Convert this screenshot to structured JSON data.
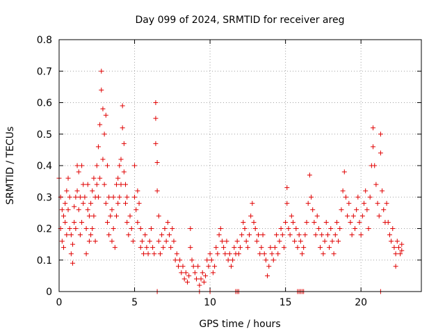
{
  "chart_data": {
    "type": "scatter",
    "title": "Day 099 of 2024, SRMTID for receiver areg",
    "xlabel": "GPS time / hours",
    "ylabel": "SRMTID / TECUs",
    "xlim": [
      0,
      24
    ],
    "ylim": [
      0,
      0.8
    ],
    "xticks": [
      0,
      5,
      10,
      15,
      20
    ],
    "xtick_labels": [
      "0",
      "5",
      "10",
      "15",
      "20"
    ],
    "yticks": [
      0,
      0.1,
      0.2,
      0.3,
      0.4,
      0.5,
      0.6,
      0.7,
      0.8
    ],
    "ytick_labels": [
      "0",
      "0.1",
      "0.2",
      "0.3",
      "0.4",
      "0.5",
      "0.6",
      "0.7",
      "0.8"
    ],
    "grid": true,
    "marker": "plus",
    "color": "#e00000",
    "series": [
      {
        "name": "SRMTID",
        "points": [
          [
            0.0,
            0.36
          ],
          [
            0.1,
            0.3
          ],
          [
            0.1,
            0.2
          ],
          [
            0.2,
            0.16
          ],
          [
            0.2,
            0.26
          ],
          [
            0.3,
            0.14
          ],
          [
            0.3,
            0.24
          ],
          [
            0.4,
            0.28
          ],
          [
            0.4,
            0.22
          ],
          [
            0.5,
            0.32
          ],
          [
            0.5,
            0.18
          ],
          [
            0.6,
            0.36
          ],
          [
            0.6,
            0.26
          ],
          [
            0.7,
            0.3
          ],
          [
            0.7,
            0.2
          ],
          [
            0.8,
            0.12
          ],
          [
            0.8,
            0.18
          ],
          [
            0.9,
            0.09
          ],
          [
            0.9,
            0.15
          ],
          [
            1.0,
            0.22
          ],
          [
            1.0,
            0.27
          ],
          [
            1.1,
            0.3
          ],
          [
            1.1,
            0.2
          ],
          [
            1.2,
            0.4
          ],
          [
            1.2,
            0.32
          ],
          [
            1.3,
            0.26
          ],
          [
            1.3,
            0.38
          ],
          [
            1.4,
            0.18
          ],
          [
            1.4,
            0.3
          ],
          [
            1.5,
            0.22
          ],
          [
            1.5,
            0.4
          ],
          [
            1.6,
            0.34
          ],
          [
            1.6,
            0.28
          ],
          [
            1.7,
            0.3
          ],
          [
            1.8,
            0.2
          ],
          [
            1.8,
            0.12
          ],
          [
            1.9,
            0.26
          ],
          [
            1.9,
            0.34
          ],
          [
            2.0,
            0.16
          ],
          [
            2.0,
            0.24
          ],
          [
            2.1,
            0.18
          ],
          [
            2.1,
            0.28
          ],
          [
            2.2,
            0.32
          ],
          [
            2.2,
            0.2
          ],
          [
            2.3,
            0.36
          ],
          [
            2.3,
            0.24
          ],
          [
            2.4,
            0.3
          ],
          [
            2.4,
            0.16
          ],
          [
            2.5,
            0.34
          ],
          [
            2.5,
            0.4
          ],
          [
            2.6,
            0.46
          ],
          [
            2.6,
            0.3
          ],
          [
            2.7,
            0.53
          ],
          [
            2.7,
            0.36
          ],
          [
            2.8,
            0.7
          ],
          [
            2.8,
            0.64
          ],
          [
            2.9,
            0.58
          ],
          [
            2.9,
            0.42
          ],
          [
            3.0,
            0.5
          ],
          [
            3.0,
            0.34
          ],
          [
            3.1,
            0.56
          ],
          [
            3.1,
            0.28
          ],
          [
            3.2,
            0.4
          ],
          [
            3.2,
            0.22
          ],
          [
            3.3,
            0.3
          ],
          [
            3.3,
            0.18
          ],
          [
            3.4,
            0.24
          ],
          [
            3.5,
            0.16
          ],
          [
            3.5,
            0.26
          ],
          [
            3.6,
            0.2
          ],
          [
            3.6,
            0.3
          ],
          [
            3.7,
            0.14
          ],
          [
            3.8,
            0.24
          ],
          [
            3.8,
            0.34
          ],
          [
            3.9,
            0.36
          ],
          [
            3.9,
            0.28
          ],
          [
            4.0,
            0.3
          ],
          [
            4.0,
            0.4
          ],
          [
            4.1,
            0.42
          ],
          [
            4.1,
            0.34
          ],
          [
            4.2,
            0.59
          ],
          [
            4.2,
            0.52
          ],
          [
            4.3,
            0.47
          ],
          [
            4.3,
            0.38
          ],
          [
            4.4,
            0.28
          ],
          [
            4.4,
            0.34
          ],
          [
            4.5,
            0.22
          ],
          [
            4.5,
            0.3
          ],
          [
            4.6,
            0.18
          ],
          [
            4.7,
            0.24
          ],
          [
            4.8,
            0.2
          ],
          [
            4.9,
            0.16
          ],
          [
            5.0,
            0.4
          ],
          [
            5.0,
            0.3
          ],
          [
            5.1,
            0.26
          ],
          [
            5.2,
            0.22
          ],
          [
            5.2,
            0.32
          ],
          [
            5.3,
            0.28
          ],
          [
            5.4,
            0.2
          ],
          [
            5.4,
            0.14
          ],
          [
            5.5,
            0.16
          ],
          [
            5.6,
            0.12
          ],
          [
            5.7,
            0.18
          ],
          [
            5.8,
            0.14
          ],
          [
            5.9,
            0.12
          ],
          [
            6.0,
            0.16
          ],
          [
            6.1,
            0.2
          ],
          [
            6.2,
            0.14
          ],
          [
            6.3,
            0.12
          ],
          [
            6.4,
            0.6
          ],
          [
            6.4,
            0.55
          ],
          [
            6.4,
            0.47
          ],
          [
            6.5,
            0.41
          ],
          [
            6.5,
            0.32
          ],
          [
            6.6,
            0.24
          ],
          [
            6.6,
            0.16
          ],
          [
            6.7,
            0.12
          ],
          [
            6.8,
            0.18
          ],
          [
            6.9,
            0.14
          ],
          [
            7.0,
            0.2
          ],
          [
            7.1,
            0.16
          ],
          [
            7.2,
            0.22
          ],
          [
            7.3,
            0.18
          ],
          [
            7.4,
            0.14
          ],
          [
            7.5,
            0.2
          ],
          [
            7.6,
            0.16
          ],
          [
            7.7,
            0.1
          ],
          [
            7.8,
            0.12
          ],
          [
            7.9,
            0.08
          ],
          [
            8.0,
            0.1
          ],
          [
            8.1,
            0.06
          ],
          [
            8.2,
            0.08
          ],
          [
            8.3,
            0.04
          ],
          [
            8.4,
            0.06
          ],
          [
            8.5,
            0.03
          ],
          [
            8.6,
            0.05
          ],
          [
            8.7,
            0.2
          ],
          [
            8.7,
            0.14
          ],
          [
            8.8,
            0.1
          ],
          [
            8.9,
            0.08
          ],
          [
            9.0,
            0.06
          ],
          [
            9.1,
            0.04
          ],
          [
            9.2,
            0.08
          ],
          [
            9.3,
            0.02
          ],
          [
            9.4,
            0.04
          ],
          [
            9.5,
            0.06
          ],
          [
            9.6,
            0.03
          ],
          [
            9.7,
            0.05
          ],
          [
            9.8,
            0.1
          ],
          [
            9.9,
            0.08
          ],
          [
            10.0,
            0.12
          ],
          [
            10.1,
            0.1
          ],
          [
            10.2,
            0.06
          ],
          [
            10.3,
            0.08
          ],
          [
            10.4,
            0.14
          ],
          [
            10.5,
            0.12
          ],
          [
            10.6,
            0.18
          ],
          [
            10.7,
            0.2
          ],
          [
            10.8,
            0.16
          ],
          [
            10.9,
            0.14
          ],
          [
            11.0,
            0.12
          ],
          [
            11.1,
            0.16
          ],
          [
            11.2,
            0.1
          ],
          [
            11.3,
            0.12
          ],
          [
            11.4,
            0.08
          ],
          [
            11.5,
            0.1
          ],
          [
            11.6,
            0.14
          ],
          [
            11.7,
            0.12
          ],
          [
            11.8,
            0.16
          ],
          [
            11.9,
            0.12
          ],
          [
            12.0,
            0.14
          ],
          [
            12.1,
            0.18
          ],
          [
            12.2,
            0.22
          ],
          [
            12.3,
            0.2
          ],
          [
            12.4,
            0.16
          ],
          [
            12.5,
            0.14
          ],
          [
            12.6,
            0.18
          ],
          [
            12.7,
            0.24
          ],
          [
            12.8,
            0.28
          ],
          [
            12.9,
            0.22
          ],
          [
            13.0,
            0.2
          ],
          [
            13.1,
            0.16
          ],
          [
            13.2,
            0.18
          ],
          [
            13.3,
            0.12
          ],
          [
            13.4,
            0.14
          ],
          [
            13.5,
            0.18
          ],
          [
            13.6,
            0.12
          ],
          [
            13.7,
            0.1
          ],
          [
            13.8,
            0.05
          ],
          [
            13.9,
            0.08
          ],
          [
            14.0,
            0.14
          ],
          [
            14.1,
            0.12
          ],
          [
            14.2,
            0.1
          ],
          [
            14.3,
            0.14
          ],
          [
            14.4,
            0.18
          ],
          [
            14.5,
            0.12
          ],
          [
            14.6,
            0.16
          ],
          [
            14.7,
            0.2
          ],
          [
            14.8,
            0.18
          ],
          [
            14.9,
            0.14
          ],
          [
            15.0,
            0.22
          ],
          [
            15.1,
            0.28
          ],
          [
            15.1,
            0.33
          ],
          [
            15.2,
            0.2
          ],
          [
            15.3,
            0.18
          ],
          [
            15.4,
            0.24
          ],
          [
            15.5,
            0.22
          ],
          [
            15.6,
            0.16
          ],
          [
            15.7,
            0.2
          ],
          [
            15.8,
            0.14
          ],
          [
            15.9,
            0.18
          ],
          [
            16.0,
            0.16
          ],
          [
            16.1,
            0.12
          ],
          [
            16.2,
            0.14
          ],
          [
            16.3,
            0.18
          ],
          [
            16.4,
            0.22
          ],
          [
            16.5,
            0.28
          ],
          [
            16.6,
            0.37
          ],
          [
            16.7,
            0.3
          ],
          [
            16.8,
            0.26
          ],
          [
            16.9,
            0.22
          ],
          [
            17.0,
            0.18
          ],
          [
            17.1,
            0.24
          ],
          [
            17.2,
            0.2
          ],
          [
            17.3,
            0.14
          ],
          [
            17.4,
            0.18
          ],
          [
            17.5,
            0.12
          ],
          [
            17.6,
            0.16
          ],
          [
            17.7,
            0.22
          ],
          [
            17.8,
            0.18
          ],
          [
            17.9,
            0.14
          ],
          [
            18.0,
            0.2
          ],
          [
            18.1,
            0.16
          ],
          [
            18.2,
            0.12
          ],
          [
            18.3,
            0.18
          ],
          [
            18.4,
            0.22
          ],
          [
            18.5,
            0.16
          ],
          [
            18.6,
            0.2
          ],
          [
            18.7,
            0.26
          ],
          [
            18.8,
            0.32
          ],
          [
            18.9,
            0.38
          ],
          [
            19.0,
            0.3
          ],
          [
            19.1,
            0.24
          ],
          [
            19.2,
            0.28
          ],
          [
            19.3,
            0.22
          ],
          [
            19.4,
            0.18
          ],
          [
            19.5,
            0.24
          ],
          [
            19.6,
            0.2
          ],
          [
            19.7,
            0.26
          ],
          [
            19.8,
            0.3
          ],
          [
            19.9,
            0.22
          ],
          [
            20.0,
            0.18
          ],
          [
            20.1,
            0.24
          ],
          [
            20.2,
            0.28
          ],
          [
            20.3,
            0.32
          ],
          [
            20.4,
            0.26
          ],
          [
            20.5,
            0.2
          ],
          [
            20.6,
            0.3
          ],
          [
            20.7,
            0.4
          ],
          [
            20.8,
            0.46
          ],
          [
            20.8,
            0.52
          ],
          [
            20.9,
            0.4
          ],
          [
            21.0,
            0.34
          ],
          [
            21.1,
            0.28
          ],
          [
            21.2,
            0.24
          ],
          [
            21.3,
            0.5
          ],
          [
            21.3,
            0.44
          ],
          [
            21.4,
            0.32
          ],
          [
            21.5,
            0.26
          ],
          [
            21.6,
            0.22
          ],
          [
            21.7,
            0.28
          ],
          [
            21.8,
            0.22
          ],
          [
            21.9,
            0.18
          ],
          [
            22.0,
            0.16
          ],
          [
            22.1,
            0.2
          ],
          [
            22.2,
            0.14
          ],
          [
            22.3,
            0.08
          ],
          [
            22.3,
            0.12
          ],
          [
            22.4,
            0.16
          ],
          [
            22.5,
            0.14
          ],
          [
            22.6,
            0.12
          ],
          [
            22.7,
            0.15
          ],
          [
            22.7,
            0.13
          ],
          [
            6.5,
            0.0
          ],
          [
            9.3,
            0.0
          ],
          [
            10.0,
            0.0
          ],
          [
            11.7,
            0.0
          ],
          [
            11.8,
            0.0
          ],
          [
            11.9,
            0.0
          ],
          [
            15.8,
            0.0
          ],
          [
            15.9,
            0.0
          ],
          [
            16.0,
            0.0
          ],
          [
            16.1,
            0.0
          ],
          [
            16.2,
            0.0
          ],
          [
            21.3,
            0.0
          ]
        ]
      }
    ]
  }
}
